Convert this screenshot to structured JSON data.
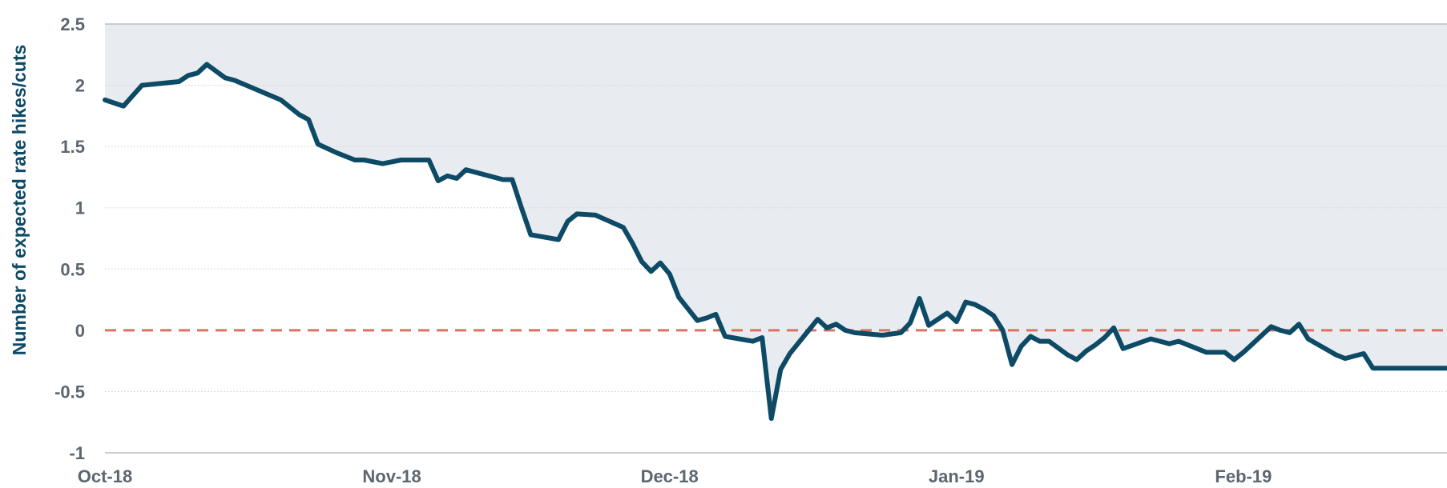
{
  "chart_data": {
    "type": "line",
    "title": "",
    "xlabel": "",
    "ylabel": "Number of expected rate hikes/cuts",
    "ylim": [
      -1,
      2.5
    ],
    "yticks": [
      "2.5",
      "2",
      "1.5",
      "1",
      "0.5",
      "0",
      "-0.5",
      "-1"
    ],
    "xticks": [
      "Oct-18",
      "Nov-18",
      "Dec-18",
      "Jan-19",
      "Feb-19"
    ],
    "xlim": [
      "2018-10-01",
      "2019-02-23"
    ],
    "grid": true,
    "reference_line": {
      "y": 0,
      "style": "dashed",
      "color": "#d9725e"
    },
    "area_fill": {
      "between": "series_and_top",
      "color": "#e8ebef"
    },
    "colors": {
      "line": "#0d4a66",
      "tick_text": "#5b6670",
      "axis_title": "#0d4a66"
    },
    "series": [
      {
        "x": [
          "2018-10-01",
          "2018-10-03",
          "2018-10-05",
          "2018-10-09",
          "2018-10-10",
          "2018-10-11",
          "2018-10-12",
          "2018-10-14",
          "2018-10-15",
          "2018-10-20",
          "2018-10-22",
          "2018-10-23",
          "2018-10-24",
          "2018-10-26",
          "2018-10-28",
          "2018-10-29",
          "2018-10-31",
          "2018-11-02",
          "2018-11-05",
          "2018-11-06",
          "2018-11-07",
          "2018-11-08",
          "2018-11-09",
          "2018-11-13",
          "2018-11-14",
          "2018-11-15",
          "2018-11-16",
          "2018-11-19",
          "2018-11-20",
          "2018-11-21",
          "2018-11-23",
          "2018-11-26",
          "2018-11-27",
          "2018-11-28",
          "2018-11-29",
          "2018-11-30",
          "2018-12-01",
          "2018-12-02",
          "2018-12-04",
          "2018-12-05",
          "2018-12-06",
          "2018-12-07",
          "2018-12-10",
          "2018-12-11",
          "2018-12-12",
          "2018-12-13",
          "2018-12-14",
          "2018-12-17",
          "2018-12-18",
          "2018-12-19",
          "2018-12-20",
          "2018-12-21",
          "2018-12-24",
          "2018-12-26",
          "2018-12-27",
          "2018-12-28",
          "2018-12-29",
          "2018-12-31",
          "2019-01-01",
          "2019-01-02",
          "2019-01-03",
          "2019-01-04",
          "2019-01-05",
          "2019-01-06",
          "2019-01-07",
          "2019-01-08",
          "2019-01-09",
          "2019-01-10",
          "2019-01-11",
          "2019-01-13",
          "2019-01-14",
          "2019-01-15",
          "2019-01-16",
          "2019-01-17",
          "2019-01-18",
          "2019-01-19",
          "2019-01-22",
          "2019-01-23",
          "2019-01-24",
          "2019-01-25",
          "2019-01-28",
          "2019-01-29",
          "2019-01-30",
          "2019-01-31",
          "2019-02-01",
          "2019-02-04",
          "2019-02-05",
          "2019-02-06",
          "2019-02-07",
          "2019-02-08",
          "2019-02-11",
          "2019-02-12",
          "2019-02-13",
          "2019-02-14",
          "2019-02-15",
          "2019-02-18",
          "2019-02-19",
          "2019-02-20",
          "2019-02-21",
          "2019-02-22",
          "2019-02-23"
        ],
        "values": [
          1.88,
          1.83,
          2.0,
          2.03,
          2.08,
          2.1,
          2.17,
          2.06,
          2.04,
          1.88,
          1.76,
          1.72,
          1.52,
          1.45,
          1.39,
          1.39,
          1.36,
          1.39,
          1.39,
          1.22,
          1.26,
          1.24,
          1.31,
          1.23,
          1.23,
          1.0,
          0.78,
          0.74,
          0.89,
          0.95,
          0.94,
          0.84,
          0.71,
          0.56,
          0.48,
          0.55,
          0.46,
          0.27,
          0.08,
          0.1,
          0.13,
          -0.05,
          -0.09,
          -0.06,
          -0.72,
          -0.32,
          -0.19,
          0.09,
          0.02,
          0.05,
          0.0,
          -0.02,
          -0.04,
          -0.02,
          0.06,
          0.26,
          0.04,
          0.14,
          0.07,
          0.23,
          0.21,
          0.17,
          0.12,
          0.0,
          -0.28,
          -0.13,
          -0.05,
          -0.09,
          -0.09,
          -0.2,
          -0.24,
          -0.17,
          -0.12,
          -0.06,
          0.02,
          -0.15,
          -0.07,
          -0.09,
          -0.11,
          -0.09,
          -0.18,
          -0.18,
          -0.18,
          -0.24,
          -0.18,
          0.03,
          0.0,
          -0.02,
          0.05,
          -0.07,
          -0.2,
          -0.23,
          -0.21,
          -0.19,
          -0.31,
          -0.31,
          -0.31,
          -0.31,
          -0.31,
          -0.31,
          -0.31
        ]
      }
    ]
  }
}
